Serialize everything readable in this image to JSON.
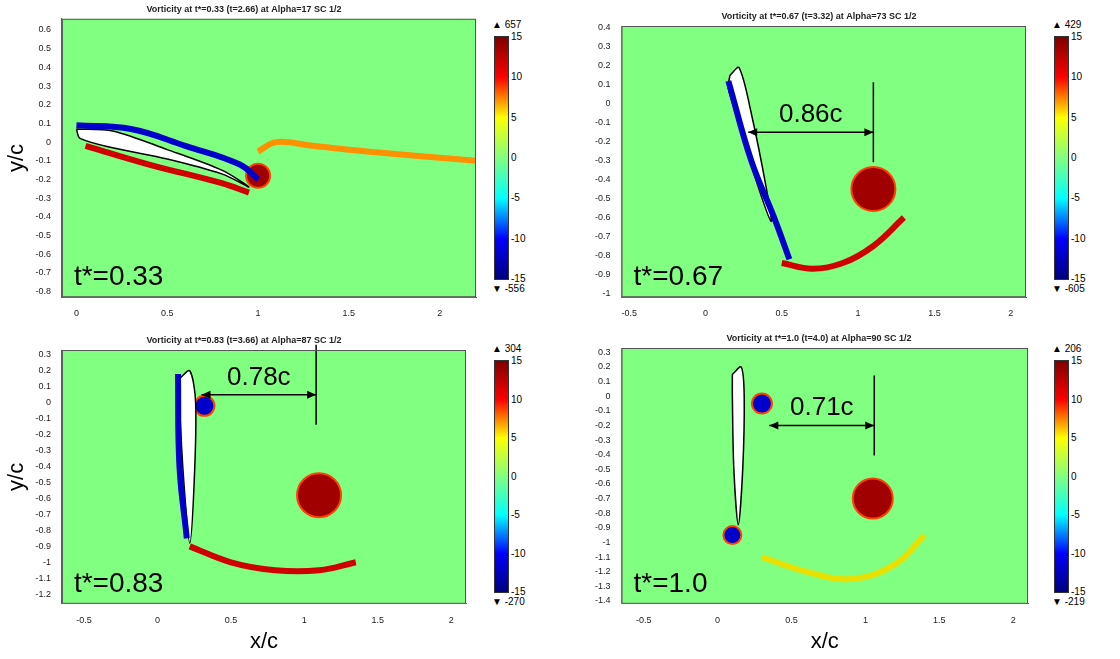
{
  "chart_data": [
    {
      "type": "line",
      "title": "Vorticity at t*=0.33 (t=2.66) at Alpha=17 SC 1/2",
      "ylabel": "y/c",
      "xlim": [
        -0.08,
        2.2
      ],
      "xticks": [
        0,
        0.5,
        1,
        1.5,
        2
      ],
      "ylim": [
        -0.83,
        0.66
      ],
      "yticks": [
        -0.8,
        -0.7,
        -0.6,
        -0.5,
        -0.4,
        -0.3,
        -0.2,
        -0.1,
        0,
        0.1,
        0.2,
        0.3,
        0.4,
        0.5,
        0.6
      ],
      "grid": false,
      "tick_labels": true,
      "annotations": [
        {
          "text": "t*=0.33"
        }
      ],
      "colorbar": {
        "range": [
          -15,
          15
        ],
        "ticks": [
          -15,
          -10,
          -5,
          0,
          5,
          10,
          15
        ],
        "max": {
          "value": 657,
          "label": "▲ 657"
        },
        "min": {
          "value": -556,
          "label": "▼ -556"
        }
      },
      "series": [
        {
          "type": "line",
          "color": "#0000cc",
          "x": [
            0,
            0.3,
            0.6,
            0.9,
            1.0
          ],
          "values": [
            0.09,
            0.07,
            -0.02,
            -0.12,
            -0.2
          ]
        },
        {
          "type": "line",
          "color": "#d00000",
          "x": [
            0.05,
            0.4,
            0.8,
            0.95
          ],
          "values": [
            -0.02,
            -0.12,
            -0.22,
            -0.27
          ]
        },
        {
          "type": "line",
          "color": "#ff9000",
          "x": [
            1.0,
            1.1,
            1.3,
            1.6,
            2.2
          ],
          "values": [
            -0.05,
            0.0,
            -0.02,
            -0.05,
            -0.1
          ]
        },
        {
          "type": "polygon",
          "color": "#ffffff",
          "x": [
            0,
            0.2,
            0.5,
            0.8,
            0.95,
            0.8,
            0.5,
            0.2,
            0.02,
            0
          ],
          "values": [
            0.07,
            0.06,
            -0.04,
            -0.15,
            -0.24,
            -0.17,
            -0.09,
            -0.03,
            0.02,
            0.07
          ]
        },
        {
          "type": "bubble",
          "color": "#a00000",
          "x": [
            1.0
          ],
          "values": [
            -0.18
          ],
          "size": [
            12
          ]
        }
      ]
    },
    {
      "type": "line",
      "title": "Vorticity at t*=0.67 (t=3.32) at Alpha=73 SC 1/2",
      "xlim": [
        -0.55,
        2.1
      ],
      "xticks": [
        -0.5,
        0,
        0.5,
        1,
        1.5,
        2
      ],
      "ylim": [
        -1.02,
        0.41
      ],
      "yticks": [
        -1,
        -0.9,
        -0.8,
        -0.7,
        -0.6,
        -0.5,
        -0.4,
        -0.3,
        -0.2,
        -0.1,
        0,
        0.1,
        0.2,
        0.3,
        0.4
      ],
      "grid": false,
      "tick_labels": true,
      "annotations": [
        {
          "text": "t*=0.67"
        },
        {
          "text": "0.86c",
          "x": [
            0.28,
            1.1
          ],
          "y": -0.15
        }
      ],
      "colorbar": {
        "range": [
          -15,
          15
        ],
        "ticks": [
          -15,
          -10,
          -5,
          0,
          5,
          10,
          15
        ],
        "max": {
          "value": 429,
          "label": "▲ 429"
        },
        "min": {
          "value": -605,
          "label": "▼ -605"
        }
      },
      "series": [
        {
          "type": "line",
          "color": "#0000cc",
          "x": [
            0.15,
            0.3,
            0.45,
            0.55
          ],
          "values": [
            0.12,
            -0.3,
            -0.6,
            -0.82
          ]
        },
        {
          "type": "line",
          "color": "#d00000",
          "x": [
            0.5,
            0.7,
            0.9,
            1.1,
            1.3
          ],
          "values": [
            -0.84,
            -0.87,
            -0.84,
            -0.75,
            -0.6
          ]
        },
        {
          "type": "polygon",
          "color": "#ffffff",
          "x": [
            0.16,
            0.22,
            0.3,
            0.4,
            0.43,
            0.33,
            0.22,
            0.15,
            0.16
          ],
          "values": [
            0.15,
            0.19,
            -0.05,
            -0.45,
            -0.62,
            -0.4,
            -0.1,
            0.08,
            0.15
          ]
        },
        {
          "type": "bubble",
          "color": "#a00000",
          "x": [
            1.1
          ],
          "values": [
            -0.45
          ],
          "size": [
            22
          ]
        }
      ]
    },
    {
      "type": "line",
      "title": "Vorticity at t*=0.83 (t=3.66) at Alpha=87 SC 1/2",
      "ylabel": "y/c",
      "xlabel": "x/c",
      "xlim": [
        -0.65,
        2.1
      ],
      "xticks": [
        -0.5,
        0,
        0.5,
        1,
        1.5,
        2
      ],
      "ylim": [
        -1.26,
        0.33
      ],
      "yticks": [
        -1.2,
        -1.1,
        -1,
        -0.9,
        -0.8,
        -0.7,
        -0.6,
        -0.5,
        -0.4,
        -0.3,
        -0.2,
        -0.1,
        0,
        0.1,
        0.2,
        0.3
      ],
      "grid": false,
      "tick_labels": true,
      "annotations": [
        {
          "text": "t*=0.83"
        },
        {
          "text": "0.78c",
          "x": [
            0.3,
            1.08
          ],
          "y": 0.05
        }
      ],
      "colorbar": {
        "range": [
          -15,
          15
        ],
        "ticks": [
          -15,
          -10,
          -5,
          0,
          5,
          10,
          15
        ],
        "max": {
          "value": 304,
          "label": "▲ 304"
        },
        "min": {
          "value": -270,
          "label": "▼ -270"
        }
      },
      "series": [
        {
          "type": "line",
          "color": "#0000cc",
          "x": [
            0.14,
            0.15,
            0.2
          ],
          "values": [
            0.18,
            -0.4,
            -0.85
          ]
        },
        {
          "type": "line",
          "color": "#d00000",
          "x": [
            0.22,
            0.5,
            0.8,
            1.1,
            1.35
          ],
          "values": [
            -0.9,
            -1.0,
            -1.05,
            -1.05,
            -1.0
          ]
        },
        {
          "type": "polygon",
          "color": "#ffffff",
          "x": [
            0.15,
            0.22,
            0.26,
            0.25,
            0.22,
            0.18,
            0.15,
            0.15
          ],
          "values": [
            0.15,
            0.2,
            0.0,
            -0.5,
            -0.88,
            -0.5,
            0.0,
            0.15
          ]
        },
        {
          "type": "bubble",
          "color": "#0000cc",
          "x": [
            0.32
          ],
          "values": [
            -0.02
          ],
          "size": [
            10
          ]
        },
        {
          "type": "bubble",
          "color": "#a00000",
          "x": [
            1.1
          ],
          "values": [
            -0.58
          ],
          "size": [
            22
          ]
        }
      ]
    },
    {
      "type": "line",
      "title": "Vorticity at t*=1.0 (t=4.0) at Alpha=90 SC 1/2",
      "xlabel": "x/c",
      "xlim": [
        -0.65,
        2.1
      ],
      "xticks": [
        -0.5,
        0,
        0.5,
        1,
        1.5,
        2
      ],
      "ylim": [
        -1.42,
        0.33
      ],
      "yticks": [
        -1.4,
        -1.3,
        -1.2,
        -1.1,
        -1,
        -0.9,
        -0.8,
        -0.7,
        -0.6,
        -0.5,
        -0.4,
        -0.3,
        -0.2,
        -0.1,
        0,
        0.1,
        0.2,
        0.3
      ],
      "grid": false,
      "tick_labels": true,
      "annotations": [
        {
          "text": "t*=1.0"
        },
        {
          "text": "0.71c",
          "x": [
            0.35,
            1.06
          ],
          "y": -0.2
        }
      ],
      "colorbar": {
        "range": [
          -15,
          15
        ],
        "ticks": [
          -15,
          -10,
          -5,
          0,
          5,
          10,
          15
        ],
        "max": {
          "value": 206,
          "label": "▲ 206"
        },
        "min": {
          "value": -219,
          "label": "▼ -219"
        }
      },
      "series": [
        {
          "type": "line",
          "color": "#e8e000",
          "x": [
            0.3,
            0.6,
            0.9,
            1.2,
            1.4
          ],
          "values": [
            -1.1,
            -1.2,
            -1.25,
            -1.15,
            -0.95
          ]
        },
        {
          "type": "polygon",
          "color": "#ffffff",
          "x": [
            0.1,
            0.16,
            0.18,
            0.17,
            0.14,
            0.11,
            0.1,
            0.1
          ],
          "values": [
            0.15,
            0.2,
            0.0,
            -0.5,
            -0.88,
            -0.5,
            0.0,
            0.15
          ]
        },
        {
          "type": "bubble",
          "color": "#0000cc",
          "x": [
            0.3,
            0.1
          ],
          "values": [
            -0.05,
            -0.95
          ],
          "size": [
            10,
            9
          ]
        },
        {
          "type": "bubble",
          "color": "#a00000",
          "x": [
            1.05
          ],
          "values": [
            -0.7
          ],
          "size": [
            20
          ]
        }
      ]
    }
  ]
}
